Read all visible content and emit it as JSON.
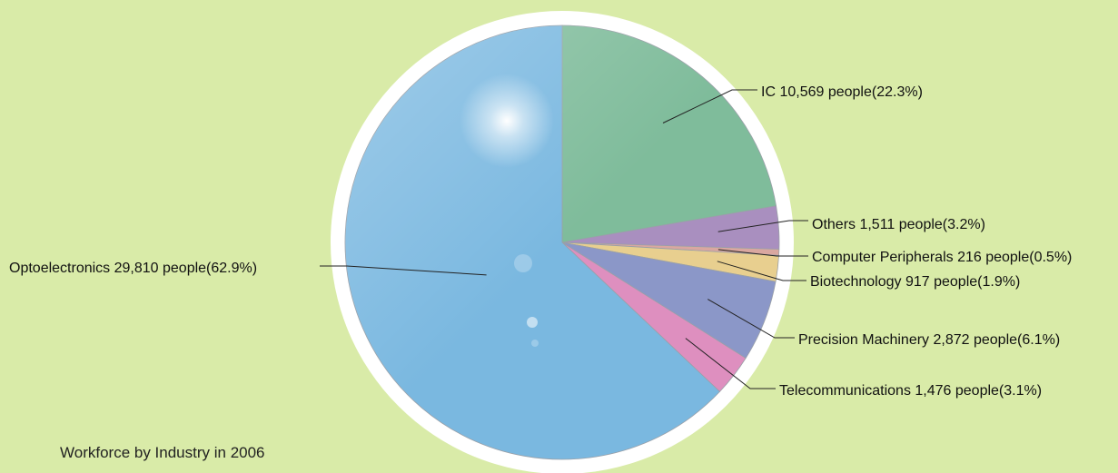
{
  "caption": "Workforce by Industry in 2006",
  "chart_data": {
    "type": "pie",
    "title": "Workforce by Industry in 2006",
    "unit": "people",
    "slices": [
      {
        "name": "IC",
        "value": 10569,
        "percent": 22.3,
        "label": "IC 10,569  people(22.3%)",
        "color": "#7fbc9b"
      },
      {
        "name": "Others",
        "value": 1511,
        "percent": 3.2,
        "label": "Others  1,511  people(3.2%)",
        "color": "#a98fbf"
      },
      {
        "name": "Computer Peripherals",
        "value": 216,
        "percent": 0.5,
        "label": "Computer Peripherals  216  people(0.5%)",
        "color": "#d9a7a0"
      },
      {
        "name": "Biotechnology",
        "value": 917,
        "percent": 1.9,
        "label": "Biotechnology  917  people(1.9%)",
        "color": "#e8cf8f"
      },
      {
        "name": "Precision Machinery",
        "value": 2872,
        "percent": 6.1,
        "label": "Precision Machinery  2,872  people(6.1%)",
        "color": "#8b97c8"
      },
      {
        "name": "Telecommunications",
        "value": 1476,
        "percent": 3.1,
        "label": "Telecommunications  1,476  people(3.1%)",
        "color": "#de8fbf"
      },
      {
        "name": "Optoelectronics",
        "value": 29810,
        "percent": 62.9,
        "label": "Optoelectronics  29,810  people(62.9%)",
        "color": "#7ab8e0"
      }
    ]
  }
}
